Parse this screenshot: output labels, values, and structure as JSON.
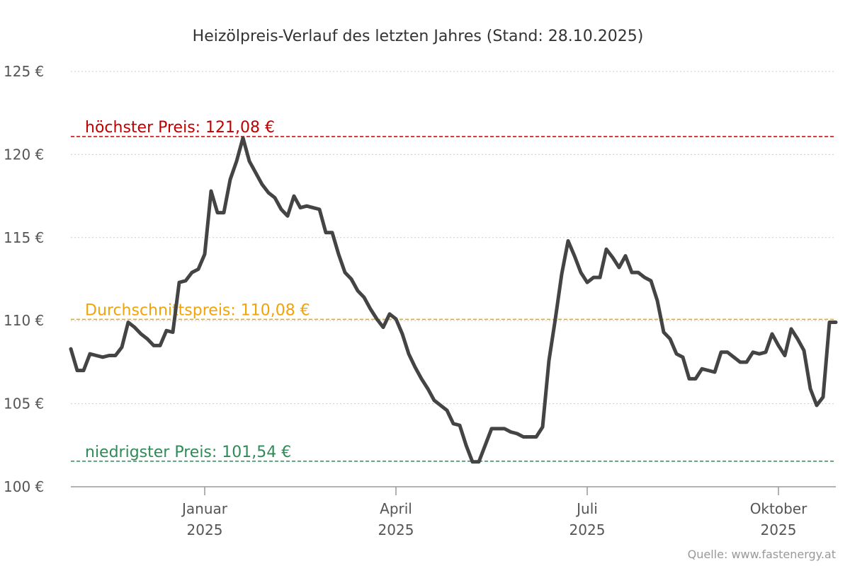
{
  "chart_data": {
    "type": "line",
    "title": "Heizölpreis-Verlauf des letzten Jahres (Stand: 28.10.2025)",
    "source": "Quelle: www.fastenergy.at",
    "categories": [
      null,
      null,
      null,
      null,
      null,
      null,
      null,
      null,
      null,
      null,
      null,
      null,
      null,
      null,
      null,
      null,
      null,
      null,
      null,
      null,
      null,
      "Januar 2025",
      null,
      null,
      null,
      null,
      null,
      null,
      null,
      null,
      null,
      null,
      null,
      null,
      null,
      null,
      null,
      null,
      null,
      null,
      null,
      null,
      null,
      null,
      null,
      null,
      null,
      null,
      null,
      null,
      null,
      "April 2025",
      null,
      null,
      null,
      null,
      null,
      null,
      null,
      null,
      null,
      null,
      null,
      null,
      null,
      null,
      null,
      null,
      null,
      null,
      null,
      null,
      null,
      null,
      null,
      null,
      null,
      null,
      null,
      null,
      null,
      "Juli 2025",
      null,
      null,
      null,
      null,
      null,
      null,
      null,
      null,
      null,
      null,
      null,
      null,
      null,
      null,
      null,
      null,
      null,
      null,
      null,
      null,
      null,
      null,
      null,
      null,
      null,
      null,
      null,
      null,
      null,
      "Oktober 2025",
      null,
      null,
      null,
      null,
      null,
      null,
      null,
      null,
      null
    ],
    "series": [
      {
        "color": "#444444",
        "values": [
          108.3,
          107.0,
          107.0,
          108.0,
          107.9,
          107.8,
          107.9,
          107.9,
          108.4,
          109.9,
          109.6,
          109.2,
          108.9,
          108.5,
          108.5,
          109.4,
          109.3,
          112.3,
          112.4,
          112.9,
          113.1,
          114.0,
          117.8,
          116.5,
          116.5,
          118.5,
          119.6,
          121.0,
          119.6,
          118.9,
          118.2,
          117.7,
          117.4,
          116.7,
          116.3,
          117.5,
          116.8,
          116.9,
          116.8,
          116.7,
          115.3,
          115.3,
          114.0,
          112.9,
          112.5,
          111.8,
          111.4,
          110.7,
          110.1,
          109.6,
          110.4,
          110.1,
          109.2,
          108.0,
          107.2,
          106.5,
          105.9,
          105.2,
          104.9,
          104.6,
          103.8,
          103.7,
          102.5,
          101.5,
          101.5,
          102.5,
          103.5,
          103.5,
          103.5,
          103.3,
          103.2,
          103.0,
          103.0,
          103.0,
          103.6,
          107.6,
          110.1,
          112.8,
          114.8,
          113.9,
          112.9,
          112.3,
          112.6,
          112.6,
          114.3,
          113.8,
          113.2,
          113.9,
          112.9,
          112.9,
          112.6,
          112.4,
          111.2,
          109.3,
          108.9,
          108.0,
          107.8,
          106.5,
          106.5,
          107.1,
          107.0,
          106.9,
          108.1,
          108.1,
          107.8,
          107.5,
          107.5,
          108.1,
          108.0,
          108.1,
          109.2,
          108.5,
          107.9,
          109.5,
          108.9,
          108.2,
          105.9,
          104.9,
          105.4,
          109.9,
          109.9
        ]
      }
    ],
    "ylim": [
      100,
      125
    ],
    "yticks": [
      {
        "value": 100,
        "label": "100 €"
      },
      {
        "value": 105,
        "label": "105 €"
      },
      {
        "value": 110,
        "label": "110 €"
      },
      {
        "value": 115,
        "label": "115 €"
      },
      {
        "value": 120,
        "label": "120 €"
      },
      {
        "value": 125,
        "label": "125 €"
      }
    ],
    "grid": true,
    "reference_lines": [
      {
        "label": "höchster Preis: 121,08 €",
        "value": 121.08,
        "color": "#c00000"
      },
      {
        "label": "Durchschnittspreis: 110,08 €",
        "value": 110.08,
        "color": "#f0a30a"
      },
      {
        "label": "niedrigster Preis: 101,54 €",
        "value": 101.54,
        "color": "#2e8b57"
      }
    ]
  }
}
